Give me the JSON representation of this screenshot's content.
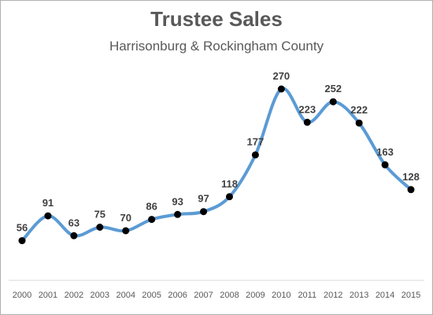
{
  "chart_data": {
    "type": "line",
    "title": "Trustee Sales",
    "subtitle": "Harrisonburg & Rockingham County",
    "categories": [
      "2000",
      "2001",
      "2002",
      "2003",
      "2004",
      "2005",
      "2006",
      "2007",
      "2008",
      "2009",
      "2010",
      "2011",
      "2012",
      "2013",
      "2014",
      "2015"
    ],
    "series": [
      {
        "values": [
          56,
          91,
          63,
          75,
          70,
          86,
          93,
          97,
          118,
          177,
          270,
          223,
          252,
          222,
          163,
          128
        ]
      }
    ],
    "ylim": [
      0,
      290
    ],
    "grid": false,
    "smooth": true,
    "line_color": "#5B9BD5",
    "marker_color": "#000000"
  }
}
